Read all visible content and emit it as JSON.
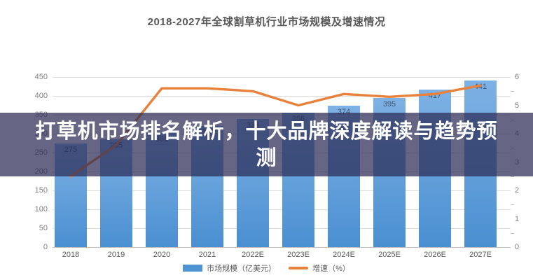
{
  "title": "2018-2027年全球割草机行业市场规模及增速情况",
  "overlay_banner": {
    "lines": [
      "打草机市场排名解析，十大品牌深度解读与趋势预",
      "测"
    ],
    "background_color": "rgba(43,43,84,0.72)",
    "text_color": "#ffffff"
  },
  "legend": {
    "market_size_label": "市场规模（亿美元）",
    "growth_label": "增速（%）"
  },
  "colors": {
    "bar_top": "#7eb1e4",
    "bar_bottom": "#4a8fd1",
    "line": "#e8813a",
    "grid": "#dcdcdc",
    "axis_text": "#7f7f7f",
    "title_text": "#595959",
    "bar_label_text": "#3e556e"
  },
  "chart_data": {
    "type": "bar",
    "title": "2018-2027年全球割草机行业市场规模及增速情况",
    "categories": [
      "2018",
      "2019",
      "2020",
      "2021",
      "2022E",
      "2023E",
      "2024E",
      "2025E",
      "2026E",
      "2027E"
    ],
    "series": [
      {
        "name": "市场规模（亿美元）",
        "type": "bar",
        "axis": "left",
        "color": "#4e94d4",
        "values": [
          275,
          285,
          301,
          320,
          338,
          356,
          374,
          395,
          417,
          441
        ]
      },
      {
        "name": "增速（%）",
        "type": "line",
        "axis": "right",
        "color": "#e8813a",
        "values": [
          2.5,
          3.6,
          5.6,
          5.6,
          5.5,
          5.0,
          5.4,
          5.3,
          5.4,
          5.7
        ]
      }
    ],
    "left_axis": {
      "min": 0,
      "max": 450,
      "step": 50
    },
    "right_axis": {
      "min": 0,
      "max": 6,
      "step": 1
    },
    "grid": true,
    "legend_position": "bottom"
  }
}
